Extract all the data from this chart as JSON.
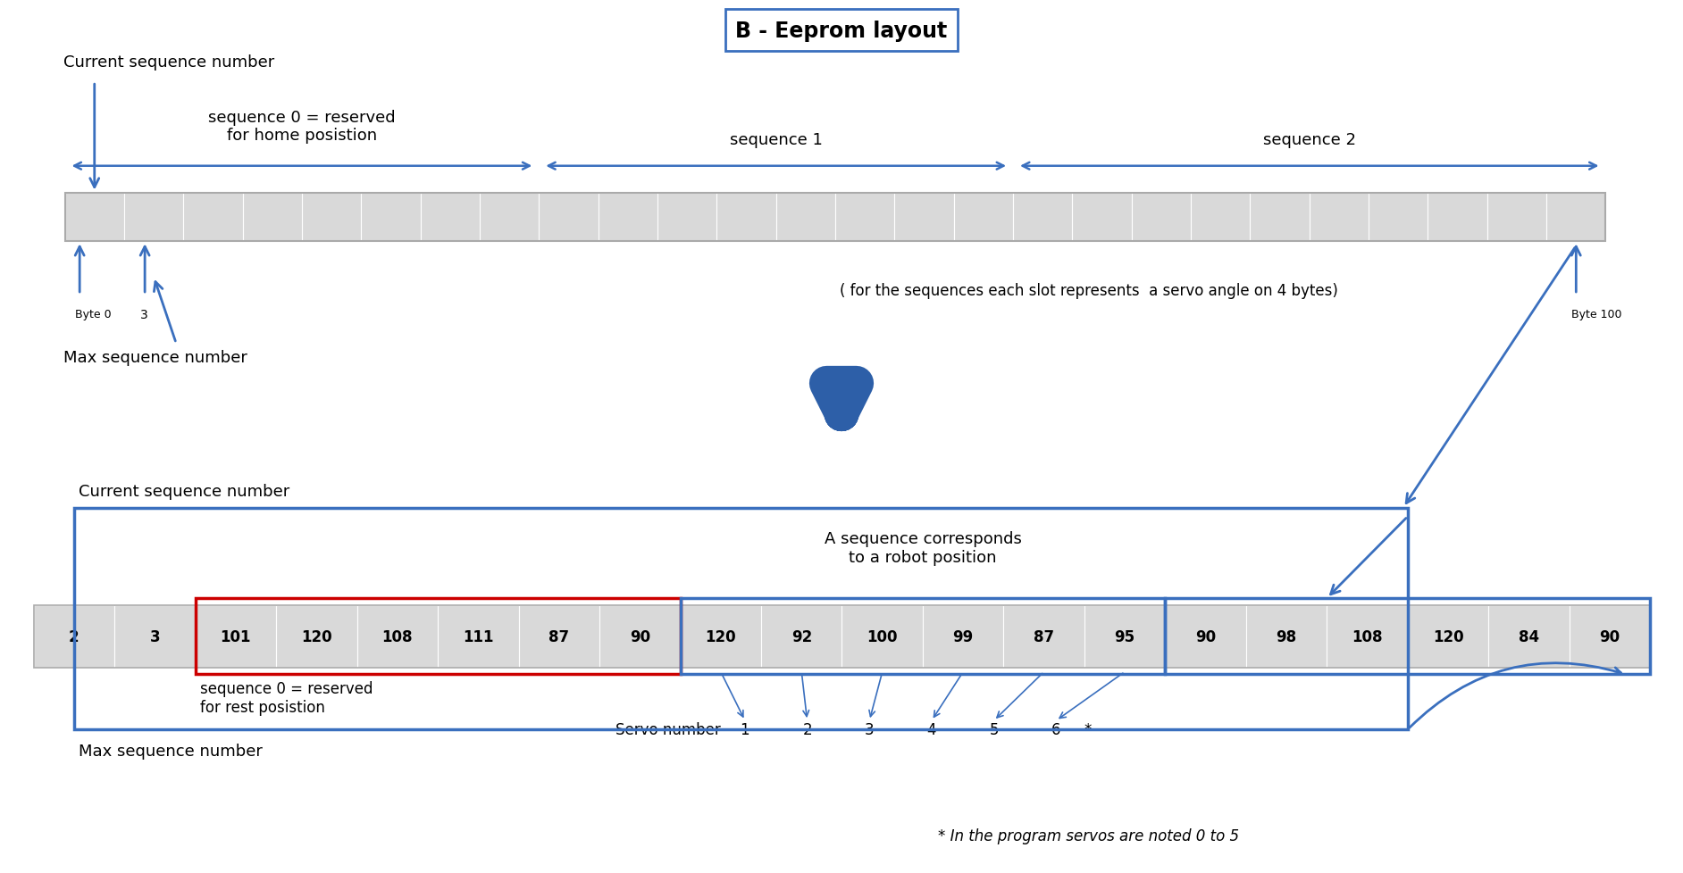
{
  "title": "B - Eeprom layout",
  "bg_color": "#ffffff",
  "cell_color": "#d9d9d9",
  "blue_color": "#3a6fbe",
  "red_color": "#cc0000",
  "seq0_label": "sequence 0 = reserved\nfor home posistion",
  "seq1_label": "sequence 1",
  "seq2_label": "sequence 2",
  "byte0_label": "Byte 0",
  "byte3_label": "3",
  "byte100_label": "Byte 100",
  "current_seq_label_top": "Current sequence number",
  "max_seq_label_top": "Max sequence number",
  "note_label": "( for the sequences each slot represents  a servo angle on 4 bytes)",
  "bottom_cells": [
    2,
    3,
    101,
    120,
    108,
    111,
    87,
    90,
    120,
    92,
    100,
    99,
    87,
    95,
    90,
    98,
    108,
    120,
    84,
    90
  ],
  "servo_numbers": [
    "1",
    "2",
    "3",
    "4",
    "5",
    "6",
    "*"
  ],
  "servo_label": "Servo number",
  "seq0_rest_label": "sequence 0 = reserved\nfor rest posistion",
  "robot_pos_label": "A sequence corresponds\nto a robot position",
  "bottom_current_seq": "Current sequence number",
  "bottom_max_seq": "Max sequence number",
  "star_note": "* In the program servos are noted 0 to 5"
}
